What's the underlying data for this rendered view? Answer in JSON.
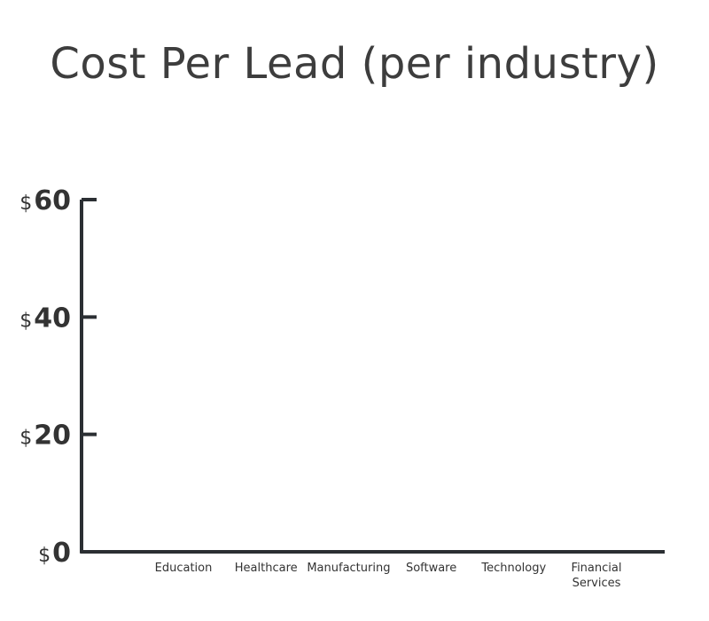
{
  "chart_data": {
    "type": "bar",
    "title": "Cost Per Lead (per industry)",
    "categories": [
      "Education",
      "Healthcare",
      "Manufacturing",
      "Software",
      "Technology",
      "Financial Services"
    ],
    "values": [
      null,
      null,
      null,
      null,
      null,
      null
    ],
    "yticks": [
      {
        "value": 0,
        "prefix": "$",
        "number": "0"
      },
      {
        "value": 20,
        "prefix": "$",
        "number": "20"
      },
      {
        "value": 40,
        "prefix": "$",
        "number": "40"
      },
      {
        "value": 60,
        "prefix": "$",
        "number": "60"
      }
    ],
    "ylim": [
      0,
      60
    ],
    "xlabel": "",
    "ylabel": "",
    "grid": false,
    "colors": {
      "axis": "#2b2f33",
      "text": "#333333"
    }
  }
}
